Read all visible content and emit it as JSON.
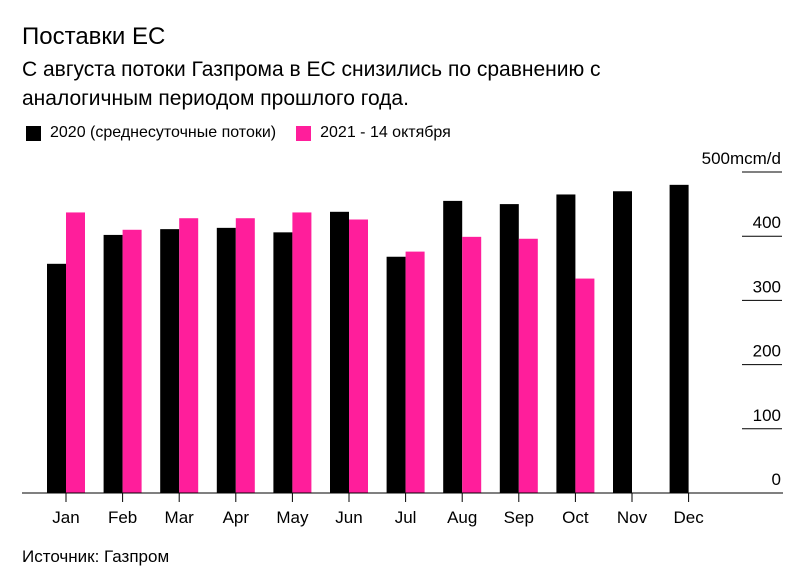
{
  "header": {
    "title": "Поставки ЕС",
    "subtitle": "С августа потоки Газпрома в ЕС снизились по сравнению с аналогичным периодом прошлого года."
  },
  "chart_data": {
    "type": "bar",
    "categories": [
      "Jan",
      "Feb",
      "Mar",
      "Apr",
      "May",
      "Jun",
      "Jul",
      "Aug",
      "Sep",
      "Oct",
      "Nov",
      "Dec"
    ],
    "series": [
      {
        "name": "2020 (среднесуточные потоки)",
        "color": "#000000",
        "values": [
          357,
          402,
          411,
          413,
          406,
          438,
          368,
          455,
          450,
          465,
          470,
          480
        ]
      },
      {
        "name": "2021 - 14 октября",
        "color": "#ff1e9b",
        "values": [
          437,
          410,
          428,
          428,
          437,
          426,
          376,
          399,
          396,
          334,
          null,
          null
        ]
      }
    ],
    "ylim": [
      0,
      500
    ],
    "yticks": [
      0,
      100,
      200,
      300,
      400,
      500
    ],
    "ytick_labels": [
      "0",
      "100",
      "200",
      "300",
      "400",
      "500mcm/d"
    ],
    "y_axis_side": "right",
    "grid": false,
    "legend_position": "top-left"
  },
  "footer": {
    "source": "Источник: Газпром"
  }
}
